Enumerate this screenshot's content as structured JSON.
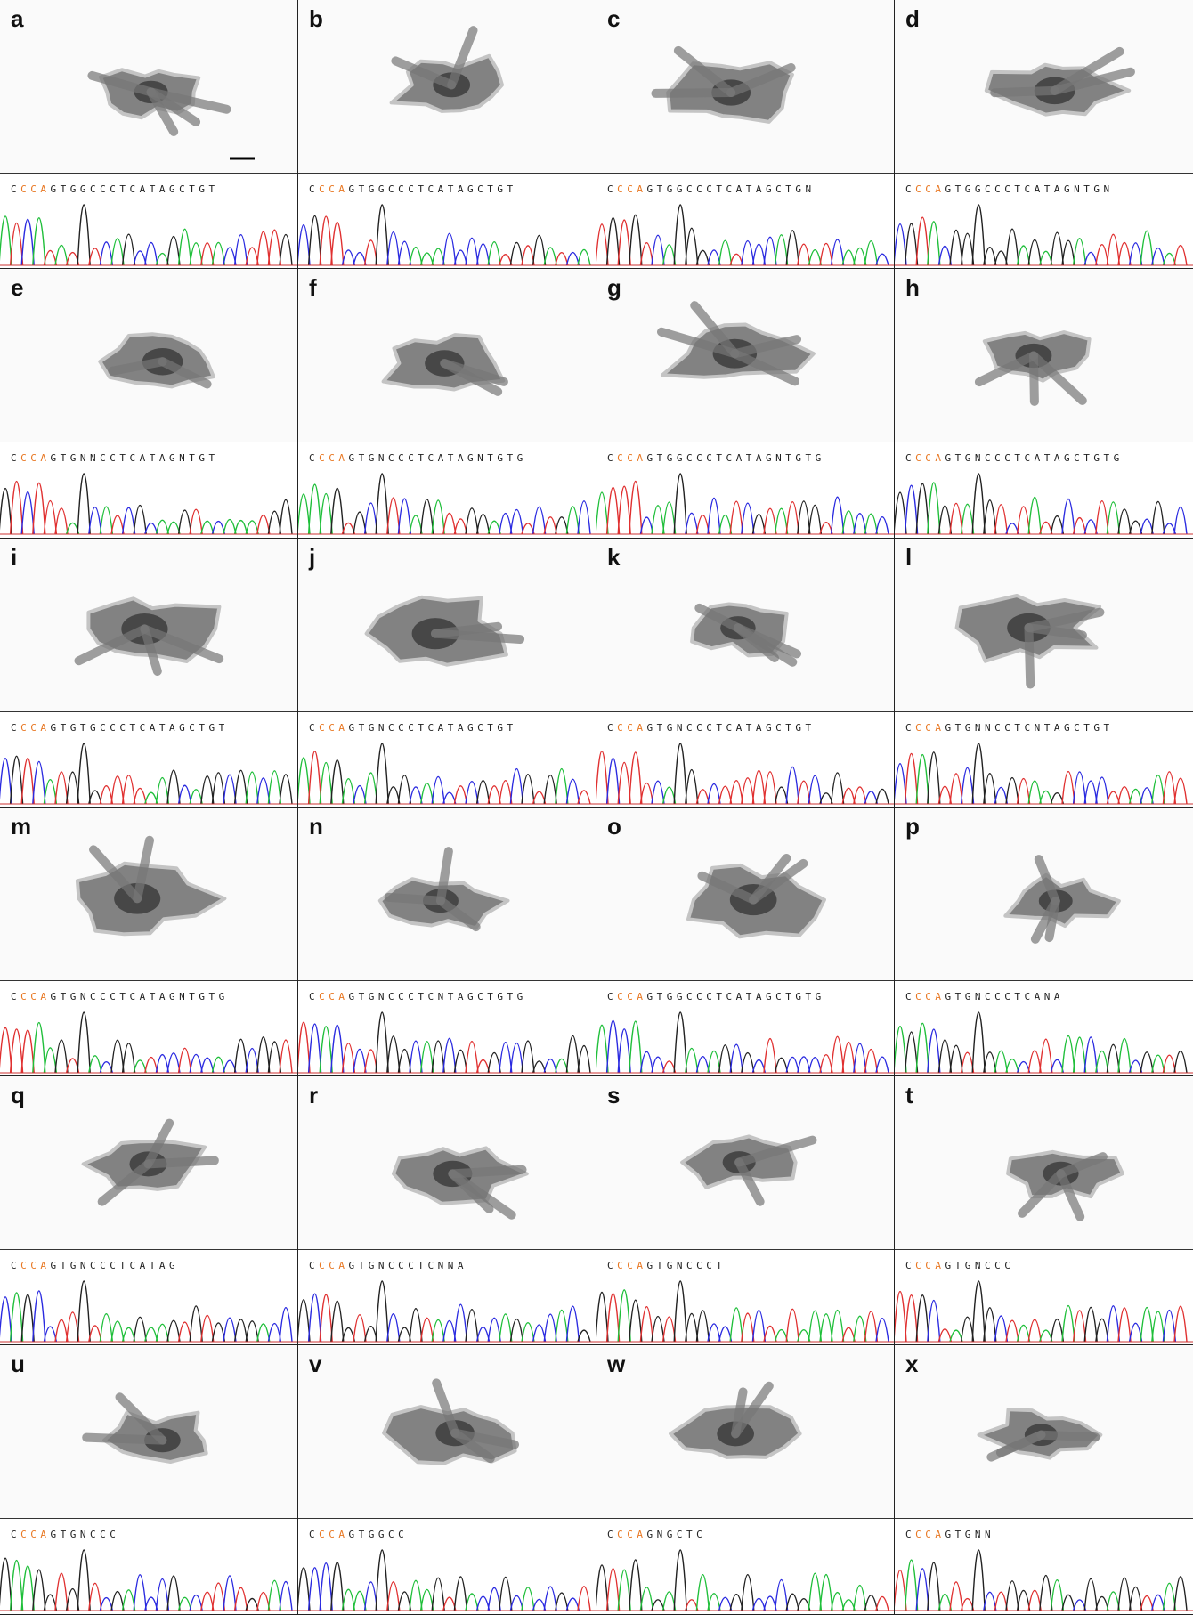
{
  "panels": [
    {
      "label": "a",
      "seq": {
        "lead": "C",
        "highlight": "CCA",
        "rest": "GTGGCCCTCATAGCTGT"
      }
    },
    {
      "label": "b",
      "seq": {
        "lead": "C",
        "highlight": "CCA",
        "rest": "GTGGCCCTCATAGCTGT"
      }
    },
    {
      "label": "c",
      "seq": {
        "lead": "C",
        "highlight": "CCA",
        "rest": "GTGGCCCTCATAGCTGN"
      }
    },
    {
      "label": "d",
      "seq": {
        "lead": "C",
        "highlight": "CCA",
        "rest": "GTGGCCCTCATAGNTGN"
      }
    },
    {
      "label": "e",
      "seq": {
        "lead": "C",
        "highlight": "CCA",
        "rest": "GTGNNCCTCATAGNTGT"
      }
    },
    {
      "label": "f",
      "seq": {
        "lead": "C",
        "highlight": "CCA",
        "rest": "GTGNCCCTCATAGNTGTG"
      }
    },
    {
      "label": "g",
      "seq": {
        "lead": "C",
        "highlight": "CCA",
        "rest": "GTGGCCCTCATAGNTGTG"
      }
    },
    {
      "label": "h",
      "seq": {
        "lead": "C",
        "highlight": "CCA",
        "rest": "GTGNCCCTCATAGCTGTG"
      }
    },
    {
      "label": "i",
      "seq": {
        "lead": "C",
        "highlight": "CCA",
        "rest": "GTGTGCCCTCATAGCTGT"
      }
    },
    {
      "label": "j",
      "seq": {
        "lead": "C",
        "highlight": "CCA",
        "rest": "GTGNCCCTCATAGCTGT"
      }
    },
    {
      "label": "k",
      "seq": {
        "lead": "C",
        "highlight": "CCA",
        "rest": "GTGNCCCTCATAGCTGT"
      }
    },
    {
      "label": "l",
      "seq": {
        "lead": "C",
        "highlight": "CCA",
        "rest": "GTGNNCCTCNTAGCTGT"
      }
    },
    {
      "label": "m",
      "seq": {
        "lead": "C",
        "highlight": "CCA",
        "rest": "GTGNCCCTCATAGNTGTG"
      }
    },
    {
      "label": "n",
      "seq": {
        "lead": "C",
        "highlight": "CCA",
        "rest": "GTGNCCCTCNTAGCTGTG"
      }
    },
    {
      "label": "o",
      "seq": {
        "lead": "C",
        "highlight": "CCA",
        "rest": "GTGGCCCTCATAGCTGTG"
      }
    },
    {
      "label": "p",
      "seq": {
        "lead": "C",
        "highlight": "CCA",
        "rest": "GTGNCCCTCANA"
      }
    },
    {
      "label": "q",
      "seq": {
        "lead": "C",
        "highlight": "CCA",
        "rest": "GTGNCCCTCATAG"
      }
    },
    {
      "label": "r",
      "seq": {
        "lead": "C",
        "highlight": "CCA",
        "rest": "GTGNCCCTCNNA"
      }
    },
    {
      "label": "s",
      "seq": {
        "lead": "C",
        "highlight": "CCA",
        "rest": "GTGNCCCT"
      }
    },
    {
      "label": "t",
      "seq": {
        "lead": "C",
        "highlight": "CCA",
        "rest": "GTGNCCC"
      }
    },
    {
      "label": "u",
      "seq": {
        "lead": "C",
        "highlight": "CCA",
        "rest": "GTGNCCC"
      }
    },
    {
      "label": "v",
      "seq": {
        "lead": "C",
        "highlight": "CCA",
        "rest": "GTGGCC"
      }
    },
    {
      "label": "w",
      "seq": {
        "lead": "C",
        "highlight": "CCA",
        "rest": "GNGCTC"
      }
    },
    {
      "label": "x",
      "seq": {
        "lead": "C",
        "highlight": "CCA",
        "rest": "GTGNN"
      }
    }
  ]
}
